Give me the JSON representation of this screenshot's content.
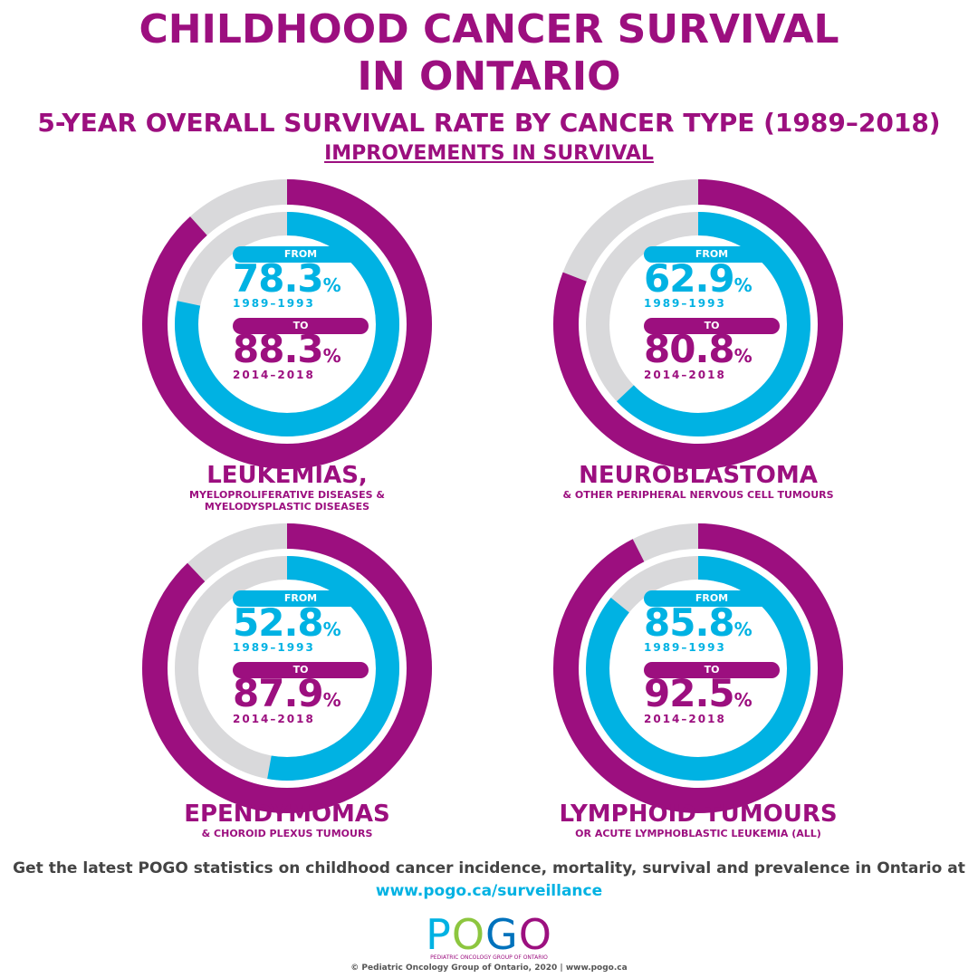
{
  "header": {
    "title_line1": "CHILDHOOD CANCER SURVIVAL",
    "title_line2": "IN ONTARIO",
    "subtitle": "5-YEAR OVERALL SURVIVAL RATE BY CANCER TYPE (1989–2018)",
    "section": "IMPROVEMENTS IN SURVIVAL"
  },
  "colors": {
    "from": "#00b2e3",
    "to": "#9c0f7f",
    "remainder": "#d9d9db"
  },
  "chart_data": [
    {
      "type": "pie",
      "name_main": "LEUKEMIAS,",
      "name_sub": "MYELOPROLIFERATIVE DISEASES & MYELODYSPLASTIC DISEASES",
      "from_label": "FROM",
      "from_value": 78.3,
      "from_value_text": "78.3",
      "from_period": "1989–1993",
      "to_label": "TO",
      "to_value": 88.3,
      "to_value_text": "88.3",
      "to_period": "2014–2018",
      "unit": "%"
    },
    {
      "type": "pie",
      "name_main": "NEUROBLASTOMA",
      "name_sub": "& OTHER PERIPHERAL NERVOUS CELL TUMOURS",
      "from_label": "FROM",
      "from_value": 62.9,
      "from_value_text": "62.9",
      "from_period": "1989–1993",
      "to_label": "TO",
      "to_value": 80.8,
      "to_value_text": "80.8",
      "to_period": "2014–2018",
      "unit": "%"
    },
    {
      "type": "pie",
      "name_main": "EPENDYMOMAS",
      "name_sub": "& CHOROID PLEXUS TUMOURS",
      "from_label": "FROM",
      "from_value": 52.8,
      "from_value_text": "52.8",
      "from_period": "1989–1993",
      "to_label": "TO",
      "to_value": 87.9,
      "to_value_text": "87.9",
      "to_period": "2014–2018",
      "unit": "%"
    },
    {
      "type": "pie",
      "name_main": "LYMPHOID TUMOURS",
      "name_sub": "OR ACUTE LYMPHOBLASTIC LEUKEMIA (ALL)",
      "from_label": "FROM",
      "from_value": 85.8,
      "from_value_text": "85.8",
      "from_period": "1989–1993",
      "to_label": "TO",
      "to_value": 92.5,
      "to_value_text": "92.5",
      "to_period": "2014–2018",
      "unit": "%"
    }
  ],
  "footer": {
    "text": "Get the latest POGO statistics on childhood cancer incidence, mortality, survival and prevalence in Ontario at",
    "url": "www.pogo.ca/surveillance",
    "logo_p": "P",
    "logo_o": "O",
    "logo_g": "G",
    "logo_o2": "O",
    "logo_sub": "PEDIATRIC ONCOLOGY GROUP OF ONTARIO",
    "copyright": "© Pediatric Oncology Group of Ontario, 2020 | www.pogo.ca"
  }
}
